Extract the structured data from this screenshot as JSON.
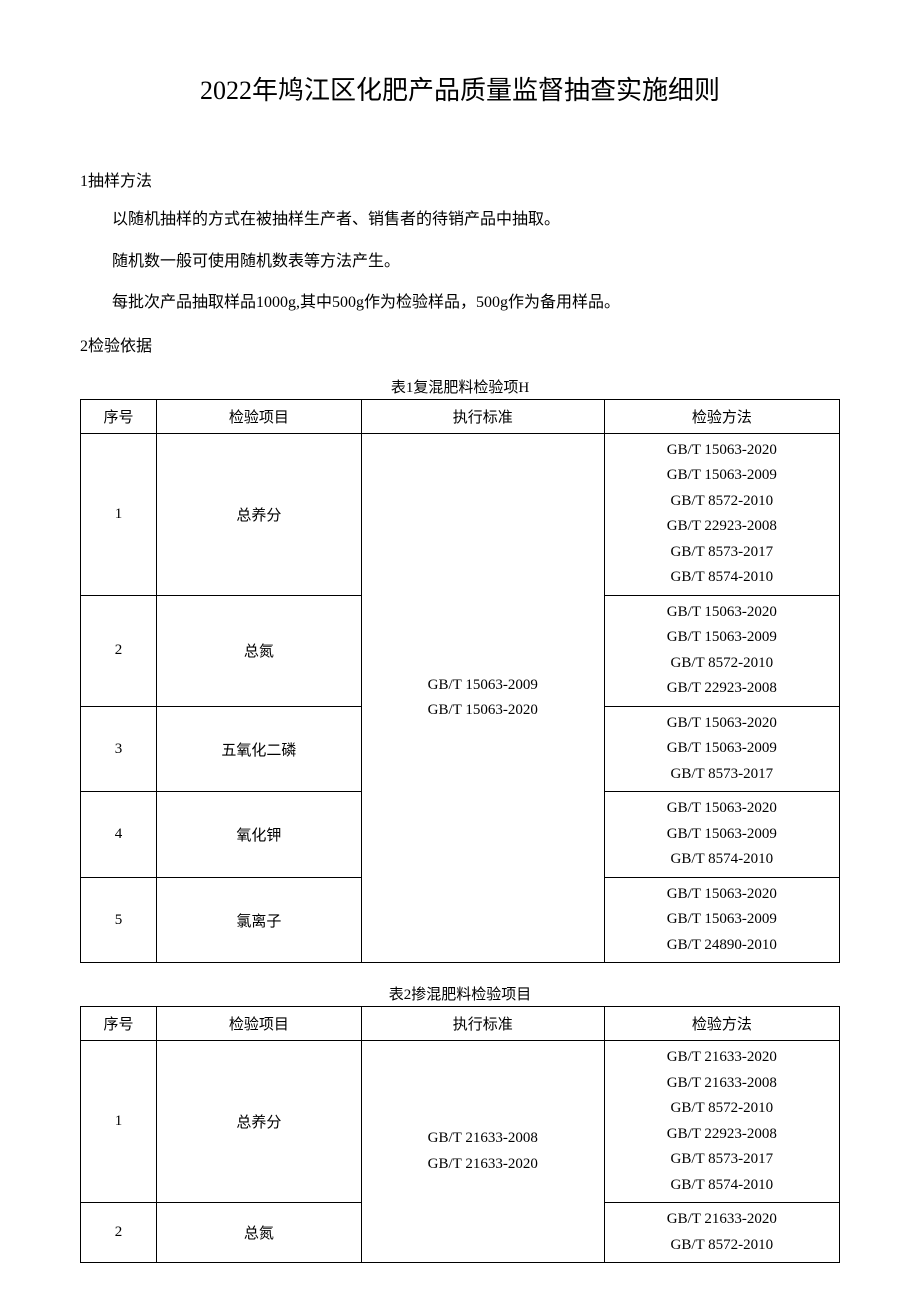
{
  "document": {
    "title": "2022年鸠江区化肥产品质量监督抽查实施细则",
    "section1": {
      "heading": "1抽样方法",
      "p1": "以随机抽样的方式在被抽样生产者、销售者的待销产品中抽取。",
      "p2": "随机数一般可使用随机数表等方法产生。",
      "p3": "每批次产品抽取样品1000g,其中500g作为检验样品，500g作为备用样品。"
    },
    "section2": {
      "heading": "2检验依据"
    },
    "table1": {
      "caption": "表1复混肥料检验项H",
      "headers": {
        "seq": "序号",
        "item": "检验项目",
        "standard": "执行标准",
        "method": "检验方法"
      },
      "standard": "GB/T 15063-2009\nGB/T 15063-2020",
      "rows": [
        {
          "seq": "1",
          "item": "总养分",
          "methods": [
            "GB/T 15063-2020",
            "GB/T 15063-2009",
            "GB/T 8572-2010",
            "GB/T 22923-2008",
            "GB/T 8573-2017",
            "GB/T 8574-2010"
          ]
        },
        {
          "seq": "2",
          "item": "总氮",
          "methods": [
            "GB/T 15063-2020",
            "GB/T 15063-2009",
            "GB/T 8572-2010",
            "GB/T 22923-2008"
          ]
        },
        {
          "seq": "3",
          "item": "五氧化二磷",
          "methods": [
            "GB/T 15063-2020",
            "GB/T 15063-2009",
            "GB/T 8573-2017"
          ]
        },
        {
          "seq": "4",
          "item": "氧化钾",
          "methods": [
            "GB/T 15063-2020",
            "GB/T 15063-2009",
            "GB/T 8574-2010"
          ]
        },
        {
          "seq": "5",
          "item": "氯离子",
          "methods": [
            "GB/T 15063-2020",
            "GB/T 15063-2009",
            "GB/T 24890-2010"
          ]
        }
      ]
    },
    "table2": {
      "caption": "表2掺混肥料检验项目",
      "headers": {
        "seq": "序号",
        "item": "检验项目",
        "standard": "执行标准",
        "method": "检验方法"
      },
      "standard": "GB/T 21633-2008\nGB/T 21633-2020",
      "rows": [
        {
          "seq": "1",
          "item": "总养分",
          "methods": [
            "GB/T 21633-2020",
            "GB/T 21633-2008",
            "GB/T 8572-2010",
            "GB/T 22923-2008",
            "GB/T 8573-2017",
            "GB/T 8574-2010"
          ]
        },
        {
          "seq": "2",
          "item": "总氮",
          "methods": [
            "GB/T 21633-2020",
            "GB/T 8572-2010"
          ]
        }
      ]
    }
  }
}
